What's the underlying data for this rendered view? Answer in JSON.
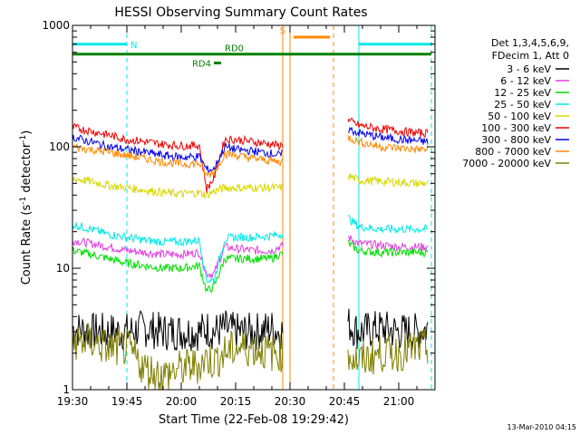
{
  "chart_data": {
    "type": "line",
    "title": "HESSI Observing Summary Count Rates",
    "xlabel": "Start Time (22-Feb-08 19:29:42)",
    "ylabel_parts": [
      "Count Rate (s",
      "-1",
      " detector",
      "-1",
      ")"
    ],
    "yscale": "log",
    "ylim": [
      1,
      1000
    ],
    "xlim": [
      "19:30",
      "21:10"
    ],
    "x_ticks": [
      "19:30",
      "19:45",
      "20:00",
      "20:15",
      "20:30",
      "20:45",
      "21:00"
    ],
    "y_ticks": [
      "1",
      "10",
      "100",
      "1000"
    ],
    "footer": "13-Mar-2010 04:15",
    "legend_header": [
      "Det 1,3,4,5,6,9,",
      "FDecim 1, Att 0"
    ],
    "x_times": [
      "19:30",
      "19:35",
      "19:40",
      "19:45",
      "19:50",
      "19:55",
      "20:00",
      "20:05",
      "20:07",
      "20:09",
      "20:12",
      "20:15",
      "20:20",
      "20:25",
      "20:27",
      "20:46",
      "20:49",
      "20:55",
      "21:00",
      "21:05",
      "21:08"
    ],
    "series": [
      {
        "name": "3 - 6 keV",
        "color": "#000000",
        "values": [
          3.2,
          3.0,
          3.0,
          3.0,
          3.2,
          3.0,
          3.0,
          3.0,
          3.2,
          3.0,
          3.2,
          3.0,
          3.0,
          3.2,
          3.0,
          3.5,
          3.0,
          3.2,
          3.0,
          3.0,
          3.2
        ]
      },
      {
        "name": "6 - 12 keV",
        "color": "#e040e0",
        "values": [
          17,
          16,
          15,
          14,
          13.5,
          13,
          13,
          13.5,
          9,
          9,
          15,
          14.5,
          14,
          14,
          15,
          18,
          16,
          15.5,
          15,
          15,
          15
        ]
      },
      {
        "name": "12 - 25 keV",
        "color": "#00dd00",
        "values": [
          14,
          13,
          12,
          11,
          10.5,
          10,
          10,
          10.5,
          6.5,
          7,
          12,
          12,
          12,
          12,
          13,
          16,
          14,
          13.5,
          13.5,
          13.5,
          13.5
        ]
      },
      {
        "name": "25 - 50 keV",
        "color": "#00e8e8",
        "values": [
          23,
          21,
          19,
          18,
          17,
          16.5,
          16.5,
          17,
          8,
          8,
          17.5,
          18,
          18,
          18.5,
          19,
          26,
          22,
          21,
          21,
          21,
          21
        ]
      },
      {
        "name": "50 - 100 keV",
        "color": "#d8d800",
        "values": [
          55,
          52,
          48,
          46,
          44,
          42,
          41,
          42,
          40,
          43,
          46,
          46,
          46,
          46,
          46,
          58,
          53,
          52,
          51,
          50,
          50
        ]
      },
      {
        "name": "100 - 300 keV",
        "color": "#ee0000",
        "values": [
          145,
          135,
          125,
          115,
          110,
          105,
          102,
          103,
          45,
          55,
          115,
          115,
          110,
          105,
          102,
          165,
          150,
          140,
          135,
          130,
          130
        ]
      },
      {
        "name": "300 - 800 keV",
        "color": "#0000ee",
        "values": [
          120,
          110,
          100,
          95,
          90,
          85,
          82,
          83,
          65,
          65,
          100,
          95,
          92,
          88,
          85,
          140,
          130,
          120,
          115,
          112,
          110
        ]
      },
      {
        "name": "800 - 7000 keV",
        "color": "#ff8800",
        "values": [
          100,
          95,
          90,
          85,
          80,
          75,
          72,
          73,
          58,
          62,
          88,
          85,
          80,
          77,
          75,
          120,
          110,
          100,
          98,
          95,
          95
        ]
      },
      {
        "name": "7000 - 20000 keV",
        "color": "#808000",
        "values": [
          2.5,
          2.5,
          2.2,
          2.2,
          1.5,
          1.3,
          1.5,
          1.6,
          1.8,
          1.7,
          2.0,
          2.2,
          2.2,
          2.0,
          2.0,
          2.0,
          1.7,
          2.0,
          2.0,
          2.2,
          2.2
        ]
      }
    ],
    "markers": [
      {
        "label": "N",
        "color": "#00e8e8",
        "start": "19:30",
        "end": "19:45",
        "level": 700
      },
      {
        "label": "",
        "color": "#00e8e8",
        "start": "20:49",
        "end": "21:09",
        "level": 700
      },
      {
        "label": "S",
        "color": "#ff8800",
        "start": "20:31",
        "end": "20:41",
        "level": 800
      },
      {
        "label": "RD0",
        "color": "#008000",
        "start": "19:30",
        "end": "21:09",
        "level": 580
      },
      {
        "label": "RD4",
        "color": "#008000",
        "start": "20:09",
        "end": "20:11",
        "level": 490
      }
    ],
    "vlines": [
      {
        "time": "19:30",
        "color": "#00e8e8",
        "style": "solid"
      },
      {
        "time": "19:45",
        "color": "#00e8e8",
        "style": "dashed"
      },
      {
        "time": "20:28",
        "color": "#ff8800",
        "style": "solid"
      },
      {
        "time": "20:30",
        "color": "#ff8800",
        "style": "solid"
      },
      {
        "time": "20:42",
        "color": "#ff8800",
        "style": "dashed"
      },
      {
        "time": "20:49",
        "color": "#00e8e8",
        "style": "solid"
      },
      {
        "time": "21:09",
        "color": "#00e8e8",
        "style": "dashed"
      }
    ],
    "gap": {
      "start": "20:28",
      "end": "20:46"
    },
    "grid": false,
    "legend_position": "right"
  }
}
